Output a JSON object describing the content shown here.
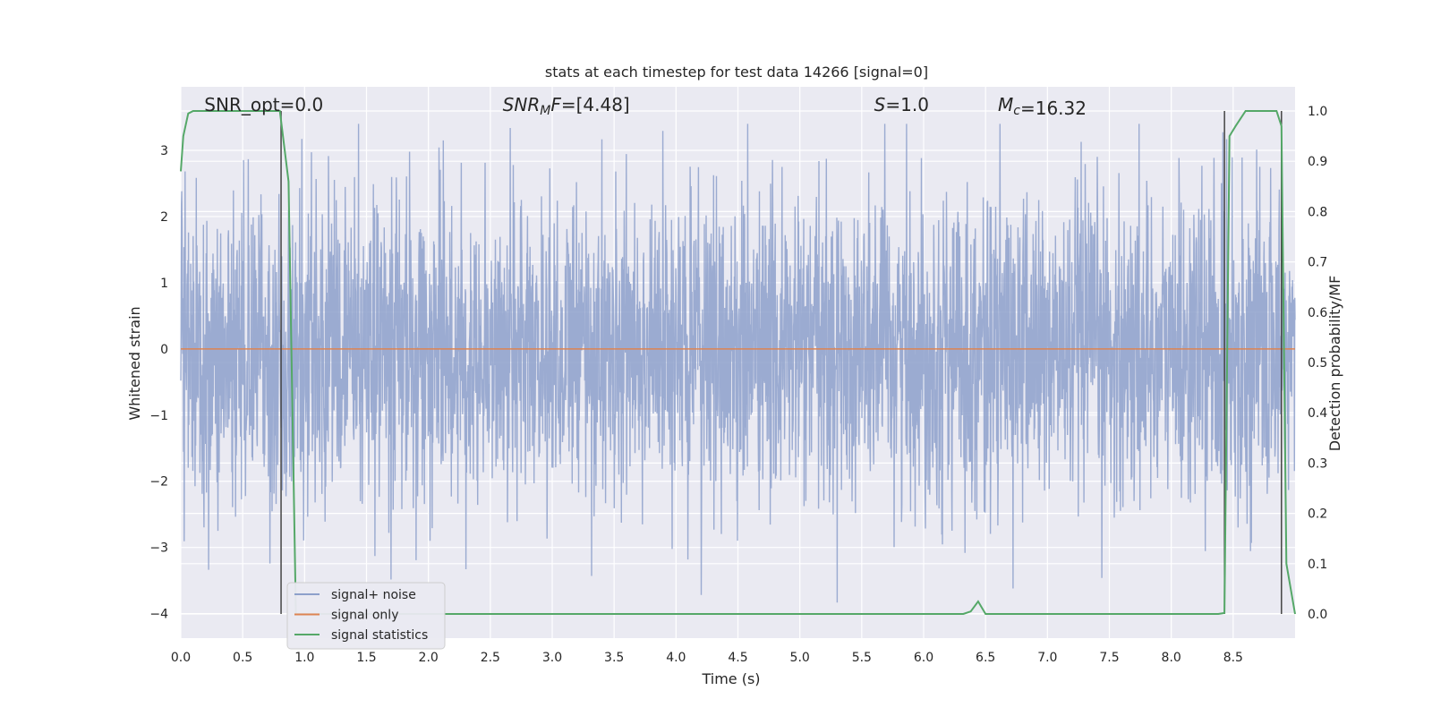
{
  "chart_data": {
    "type": "line",
    "title": "stats at each timestep for test data 14266 [signal=0]",
    "xlabel": "Time (s)",
    "ylabel": "Whitened strain",
    "ylabel_right": "Detection probability/MF",
    "xlim": [
      0.0,
      9.0
    ],
    "ylim": [
      -4.37,
      3.96
    ],
    "ylim_right": [
      -0.048,
      1.048
    ],
    "grid": true,
    "x_ticks": [
      "0.0",
      "0.5",
      "1.0",
      "1.5",
      "2.0",
      "2.5",
      "3.0",
      "3.5",
      "4.0",
      "4.5",
      "5.0",
      "5.5",
      "6.0",
      "6.5",
      "7.0",
      "7.5",
      "8.0",
      "8.5"
    ],
    "y_ticks": [
      "3",
      "2",
      "1",
      "0",
      "−1",
      "−2",
      "−3",
      "−4"
    ],
    "y_ticks_right": [
      "1.0",
      "0.9",
      "0.8",
      "0.7",
      "0.6",
      "0.5",
      "0.4",
      "0.3",
      "0.2",
      "0.1",
      "0.0"
    ],
    "annotations": [
      {
        "id": "snr-opt",
        "prefix": "SNR_opt=",
        "value": "0.0",
        "x": 0.19
      },
      {
        "id": "snr-mf",
        "prefix": "SNR",
        "sub": "M",
        "suffix": "F=",
        "value": "[4.48]",
        "x": 2.6
      },
      {
        "id": "s-stat",
        "prefix": "S",
        "value": "=1.0",
        "x": 5.6
      },
      {
        "id": "mc",
        "prefix": "M",
        "sub": "c",
        "value": "=16.32",
        "x": 6.6
      }
    ],
    "legend": {
      "placement": "lower-left",
      "entries": [
        {
          "label": "signal+ noise",
          "color": "#8da0cb"
        },
        {
          "label": "signal only",
          "color": "#dd8452"
        },
        {
          "label": "signal statistics",
          "color": "#55a868"
        }
      ]
    },
    "series": [
      {
        "name": "signal+ noise",
        "axis": "left",
        "color": "#8da0cb",
        "style": "dense-noise",
        "x_range": [
          0.0,
          9.0
        ],
        "typical_amplitude": 1.6,
        "peak_max": 3.4,
        "peak_min": -3.95
      },
      {
        "name": "signal only",
        "axis": "left",
        "color": "#dd8452",
        "x": [
          0.0,
          9.0
        ],
        "y": [
          0.0,
          0.0
        ]
      },
      {
        "name": "signal statistics",
        "axis": "right",
        "color": "#55a868",
        "x": [
          0.0,
          0.02,
          0.06,
          0.1,
          0.2,
          0.5,
          0.8,
          0.87,
          0.93,
          1.0,
          6.32,
          6.38,
          6.44,
          6.5,
          8.38,
          8.43,
          8.47,
          8.52,
          8.6,
          8.85,
          8.89,
          8.93,
          9.0
        ],
        "y": [
          0.88,
          0.95,
          0.995,
          1.0,
          1.0,
          1.0,
          1.0,
          0.86,
          0.0,
          0.0,
          0.0,
          0.005,
          0.025,
          0.0,
          0.0,
          0.002,
          0.95,
          0.97,
          1.0,
          1.0,
          0.97,
          0.1,
          0.0
        ]
      }
    ],
    "vertical_markers": [
      0.81,
      8.43,
      8.89
    ]
  }
}
